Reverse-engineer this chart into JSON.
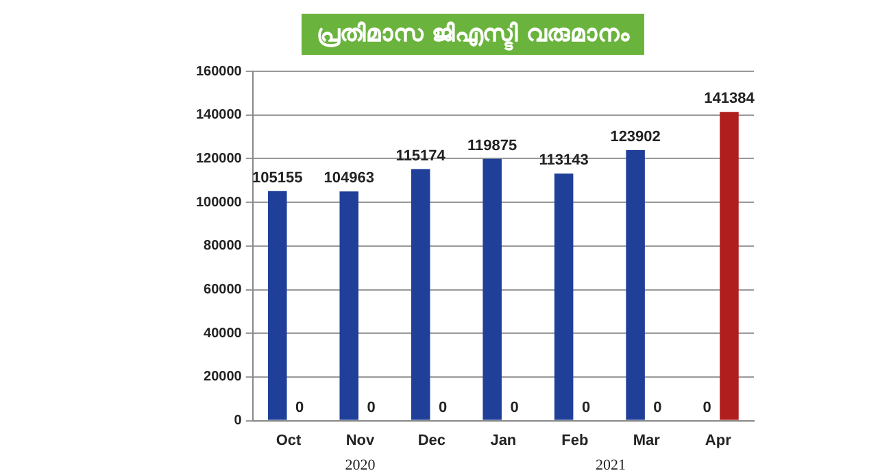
{
  "chart_data": {
    "type": "bar",
    "title": "പ്രതിമാസ ജിഎസ്ടി വരുമാനം",
    "categories": [
      "Oct",
      "Nov",
      "Dec",
      "Jan",
      "Feb",
      "Mar",
      "Apr"
    ],
    "series": [
      {
        "color": "#1f3f99",
        "values": [
          105155,
          104963,
          115174,
          119875,
          113143,
          123902,
          0
        ]
      },
      {
        "color": "#b01e1e",
        "values": [
          0,
          0,
          0,
          0,
          0,
          0,
          141384
        ]
      }
    ],
    "ylim": [
      0,
      160000
    ],
    "yticks": [
      0,
      20000,
      40000,
      60000,
      80000,
      100000,
      120000,
      140000,
      160000
    ],
    "grid": "y",
    "data_labels": true,
    "annotations": [
      "2020",
      "2021"
    ]
  }
}
